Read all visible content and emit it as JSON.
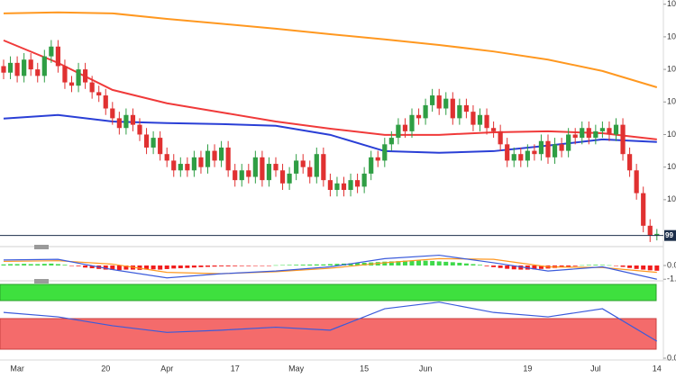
{
  "chart_data": [
    {
      "type": "candlestick",
      "categories": [
        null,
        null,
        "Mar",
        null,
        null,
        null,
        null,
        null,
        null,
        null,
        null,
        null,
        null,
        null,
        null,
        "20",
        null,
        null,
        null,
        null,
        null,
        null,
        null,
        null,
        "Apr",
        null,
        null,
        null,
        null,
        null,
        null,
        null,
        null,
        null,
        "17",
        null,
        null,
        null,
        null,
        null,
        null,
        null,
        null,
        "May",
        null,
        null,
        null,
        null,
        null,
        null,
        null,
        null,
        null,
        "15",
        null,
        null,
        null,
        null,
        null,
        null,
        null,
        null,
        "Jun",
        null,
        null,
        null,
        null,
        null,
        null,
        null,
        null,
        null,
        null,
        null,
        null,
        null,
        null,
        "19",
        null,
        null,
        null,
        null,
        null,
        null,
        null,
        null,
        null,
        "Jul",
        null,
        null,
        null,
        null,
        null,
        null,
        null,
        null,
        "14"
      ],
      "open": [
        105.1,
        104.9,
        105.2,
        104.8,
        105.3,
        105.0,
        104.8,
        105.4,
        105.7,
        105.1,
        104.6,
        104.5,
        105.0,
        104.6,
        104.3,
        104.2,
        103.8,
        103.5,
        103.2,
        103.6,
        103.3,
        103.0,
        102.6,
        102.9,
        102.4,
        102.2,
        101.9,
        102.1,
        101.9,
        102.3,
        102.0,
        102.5,
        102.2,
        102.6,
        101.9,
        101.6,
        101.9,
        101.7,
        102.3,
        101.6,
        102.1,
        101.9,
        101.5,
        101.8,
        102.2,
        102.0,
        101.7,
        102.4,
        101.6,
        101.3,
        101.5,
        101.3,
        101.6,
        101.4,
        101.8,
        102.3,
        102.2,
        102.7,
        102.9,
        103.3,
        103.1,
        103.6,
        103.5,
        103.9,
        104.2,
        103.8,
        104.1,
        103.5,
        103.9,
        103.7,
        103.3,
        103.6,
        103.2,
        103.1,
        102.7,
        102.2,
        102.4,
        102.2,
        102.5,
        102.4,
        102.8,
        102.3,
        102.7,
        102.5,
        103.0,
        102.9,
        103.2,
        102.9,
        103.1,
        103.2,
        103.0,
        103.3,
        102.4,
        101.9,
        101.2,
        100.2,
        99.9
      ],
      "high": [
        105.3,
        105.4,
        105.4,
        105.5,
        105.5,
        105.2,
        105.6,
        105.9,
        105.9,
        105.3,
        104.8,
        105.2,
        105.2,
        104.8,
        104.5,
        104.4,
        104.0,
        103.7,
        103.8,
        103.8,
        103.5,
        103.2,
        103.1,
        103.1,
        102.6,
        102.4,
        102.3,
        102.3,
        102.5,
        102.5,
        102.7,
        102.7,
        102.8,
        102.8,
        102.1,
        102.1,
        102.1,
        102.5,
        102.5,
        102.3,
        102.3,
        102.1,
        102.0,
        102.4,
        102.4,
        102.2,
        102.6,
        102.6,
        101.8,
        101.7,
        101.7,
        101.8,
        101.8,
        102.0,
        102.5,
        102.5,
        102.9,
        103.1,
        103.5,
        103.5,
        103.8,
        103.8,
        104.1,
        104.4,
        104.4,
        104.3,
        104.3,
        104.1,
        104.1,
        103.9,
        103.8,
        103.8,
        103.4,
        103.3,
        102.9,
        102.6,
        102.6,
        102.7,
        102.7,
        103.0,
        103.0,
        102.9,
        102.9,
        103.2,
        103.2,
        103.4,
        103.4,
        103.3,
        103.4,
        103.4,
        103.5,
        103.5,
        102.6,
        102.1,
        101.4,
        100.4,
        100.1
      ],
      "low": [
        104.7,
        104.7,
        104.6,
        104.6,
        104.8,
        104.6,
        104.6,
        105.2,
        104.9,
        104.4,
        104.3,
        104.3,
        104.4,
        104.1,
        104.0,
        103.6,
        103.3,
        103.0,
        103.0,
        103.1,
        102.8,
        102.4,
        102.4,
        102.2,
        102.0,
        101.7,
        101.7,
        101.7,
        101.7,
        101.8,
        101.8,
        102.0,
        102.0,
        101.7,
        101.4,
        101.4,
        101.5,
        101.5,
        101.4,
        101.4,
        101.7,
        101.3,
        101.3,
        101.6,
        101.8,
        101.5,
        101.5,
        101.4,
        101.1,
        101.1,
        101.1,
        101.1,
        101.2,
        101.2,
        101.6,
        102.0,
        102.0,
        102.5,
        102.7,
        102.9,
        102.9,
        103.3,
        103.3,
        103.7,
        103.6,
        103.6,
        103.3,
        103.3,
        103.5,
        103.1,
        103.1,
        103.0,
        102.9,
        102.5,
        102.0,
        102.0,
        102.0,
        102.0,
        102.2,
        102.2,
        102.1,
        102.1,
        102.3,
        102.3,
        102.7,
        102.7,
        102.7,
        102.7,
        102.9,
        102.8,
        102.8,
        102.2,
        101.7,
        101.0,
        100.0,
        99.7,
        99.75
      ],
      "close": [
        104.9,
        105.2,
        104.8,
        105.3,
        105.0,
        104.8,
        105.4,
        105.7,
        105.1,
        104.6,
        104.5,
        105.0,
        104.6,
        104.3,
        104.2,
        103.8,
        103.5,
        103.2,
        103.6,
        103.3,
        103.0,
        102.6,
        102.9,
        102.4,
        102.2,
        101.9,
        102.1,
        101.9,
        102.3,
        102.0,
        102.5,
        102.2,
        102.6,
        101.9,
        101.6,
        101.9,
        101.7,
        102.3,
        101.6,
        102.1,
        101.9,
        101.5,
        101.8,
        102.2,
        102.0,
        101.7,
        102.4,
        101.6,
        101.3,
        101.5,
        101.3,
        101.6,
        101.4,
        101.8,
        102.3,
        102.2,
        102.7,
        102.9,
        103.3,
        103.1,
        103.6,
        103.5,
        103.9,
        104.2,
        103.8,
        104.1,
        103.5,
        103.9,
        103.7,
        103.3,
        103.6,
        103.2,
        103.1,
        102.7,
        102.2,
        102.4,
        102.2,
        102.5,
        102.4,
        102.8,
        102.3,
        102.7,
        102.5,
        103.0,
        102.9,
        103.2,
        102.9,
        103.1,
        103.2,
        103.0,
        103.3,
        102.4,
        101.9,
        101.2,
        100.2,
        99.9,
        99.95
      ],
      "up_color": "#2f9e44",
      "down_color": "#e03131",
      "ylim": [
        99.67,
        107.13
      ],
      "yticks": [
        {
          "value": 107,
          "label": "10"
        },
        {
          "value": 106,
          "label": "10"
        },
        {
          "value": 105,
          "label": "10"
        },
        {
          "value": 104,
          "label": "10"
        },
        {
          "value": 103,
          "label": "10"
        },
        {
          "value": 102,
          "label": "10"
        },
        {
          "value": 101,
          "label": "10"
        }
      ],
      "last_price": {
        "value": 99.9,
        "label": "99"
      },
      "overlays": [
        {
          "color": "#ff9820",
          "x": [
            0,
            8,
            16,
            24,
            32,
            40,
            48,
            56,
            64,
            72,
            80,
            88,
            96
          ],
          "values": [
            106.72,
            106.75,
            106.72,
            106.55,
            106.4,
            106.25,
            106.08,
            105.92,
            105.75,
            105.55,
            105.3,
            104.95,
            104.45
          ]
        },
        {
          "color": "#f03a3a",
          "x": [
            0,
            8,
            16,
            24,
            32,
            40,
            48,
            56,
            64,
            72,
            80,
            88,
            96
          ],
          "values": [
            105.89,
            105.2,
            104.37,
            103.96,
            103.68,
            103.4,
            103.18,
            102.99,
            102.99,
            103.07,
            103.1,
            103.04,
            102.85
          ]
        },
        {
          "color": "#2a3fd6",
          "x": [
            0,
            8,
            16,
            24,
            32,
            40,
            48,
            56,
            64,
            72,
            80,
            88,
            96
          ],
          "values": [
            103.49,
            103.6,
            103.4,
            103.35,
            103.32,
            103.27,
            102.99,
            102.49,
            102.44,
            102.49,
            102.66,
            102.85,
            102.77
          ]
        }
      ]
    },
    {
      "type": "macd",
      "ylim": [
        -1.05,
        1.05
      ],
      "yticks": [
        {
          "value": 0,
          "label": "0.0"
        },
        {
          "value": -1,
          "label": "-1."
        }
      ],
      "up_color": "#3fd94a",
      "down_color": "#f01c1c",
      "histogram": [
        0.08,
        0.1,
        0.1,
        0.12,
        0.1,
        0.1,
        0.12,
        0.14,
        0.1,
        0.05,
        -0.02,
        -0.05,
        -0.15,
        -0.2,
        -0.25,
        -0.3,
        -0.32,
        -0.34,
        -0.3,
        -0.3,
        -0.32,
        -0.3,
        -0.28,
        -0.3,
        -0.26,
        -0.22,
        -0.2,
        -0.18,
        -0.15,
        -0.12,
        -0.1,
        -0.08,
        -0.06,
        -0.06,
        -0.05,
        -0.04,
        -0.04,
        -0.03,
        -0.02,
        -0.02,
        0.02,
        0.03,
        0.04,
        0.05,
        0.06,
        0.07,
        0.08,
        0.08,
        0.1,
        0.12,
        0.14,
        0.16,
        0.18,
        0.2,
        0.22,
        0.25,
        0.28,
        0.3,
        0.32,
        0.35,
        0.36,
        0.36,
        0.35,
        0.33,
        0.3,
        0.27,
        0.24,
        0.2,
        0.15,
        0.1,
        0.05,
        -0.05,
        -0.12,
        -0.18,
        -0.24,
        -0.28,
        -0.3,
        -0.3,
        -0.28,
        -0.25,
        -0.22,
        -0.18,
        -0.14,
        -0.1,
        -0.05,
        0.02,
        0.04,
        0.05,
        0.04,
        0.02,
        -0.02,
        -0.1,
        -0.18,
        -0.25,
        -0.3,
        -0.35,
        -0.38
      ],
      "x": [
        0,
        8,
        16,
        24,
        32,
        40,
        48,
        56,
        64,
        72,
        80,
        88,
        96
      ],
      "macd": {
        "color": "#3b5bdb",
        "values": [
          0.4,
          0.45,
          -0.3,
          -0.9,
          -0.6,
          -0.4,
          -0.1,
          0.5,
          0.75,
          0.2,
          -0.4,
          -0.1,
          -1.0
        ]
      },
      "signal": {
        "color": "#ff9820",
        "values": [
          0.3,
          0.35,
          0.1,
          -0.5,
          -0.6,
          -0.45,
          -0.2,
          0.2,
          0.5,
          0.45,
          -0.1,
          -0.15,
          -0.5
        ]
      }
    },
    {
      "type": "line",
      "ylim": [
        0,
        100
      ],
      "yticks": [
        {
          "value": 0,
          "label": "0.0"
        }
      ],
      "x": [
        0,
        8,
        16,
        24,
        32,
        40,
        48,
        56,
        64,
        72,
        80,
        88,
        96
      ],
      "series": [
        {
          "color": "#3b5bdb",
          "values": [
            62,
            56,
            44,
            35,
            38,
            42,
            38,
            67,
            76,
            62,
            56,
            67,
            23
          ]
        }
      ]
    }
  ]
}
